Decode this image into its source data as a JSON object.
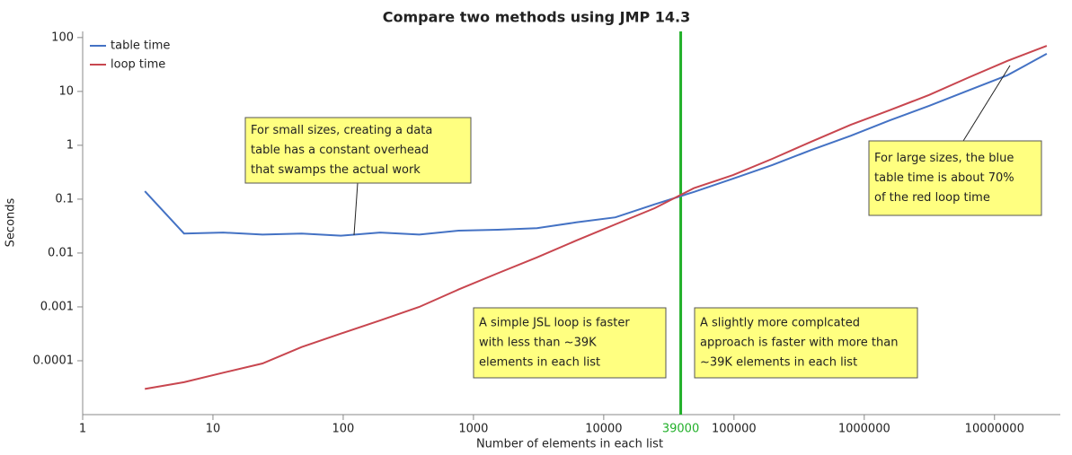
{
  "chart_data": {
    "type": "line",
    "title": "Compare two methods using JMP 14.3",
    "x_label": "Number of elements in each list",
    "y_label": "Seconds",
    "x_scale": "log",
    "y_scale": "log",
    "x": [
      3,
      6,
      12,
      24,
      48,
      96,
      192,
      384,
      768,
      1536,
      3072,
      6144,
      12288,
      24576,
      49152,
      98304,
      196608,
      393216,
      786432,
      1572864,
      3145728,
      6291456,
      12582912,
      25165824
    ],
    "series": [
      {
        "name": "table time",
        "color": "#4472c4",
        "values": [
          0.14,
          0.023,
          0.024,
          0.022,
          0.023,
          0.021,
          0.024,
          0.022,
          0.026,
          0.027,
          0.029,
          0.037,
          0.046,
          0.08,
          0.136,
          0.24,
          0.43,
          0.82,
          1.5,
          2.9,
          5.4,
          10.4,
          20,
          50
        ]
      },
      {
        "name": "loop time",
        "color": "#c8464f",
        "values": [
          3e-05,
          4e-05,
          6e-05,
          8.9e-05,
          0.00018,
          0.00032,
          0.00056,
          0.001,
          0.0021,
          0.0042,
          0.0083,
          0.017,
          0.034,
          0.068,
          0.16,
          0.28,
          0.56,
          1.17,
          2.4,
          4.5,
          8.6,
          18,
          37,
          70
        ]
      }
    ],
    "xlim": [
      1,
      32000000
    ],
    "ylim": [
      1e-05,
      130
    ],
    "xticks": [
      1,
      10,
      100,
      1000,
      10000,
      100000,
      1000000,
      10000000
    ],
    "yticks": [
      0.0001,
      0.001,
      0.01,
      0.1,
      1,
      10,
      100
    ],
    "reference_line": {
      "value": 39000,
      "color": "#22b02a"
    },
    "legend": "top-left",
    "annotations": [
      [
        "For small sizes, creating a data",
        "table has a constant overhead",
        "that swamps the actual work"
      ],
      [
        "For large sizes, the blue",
        "table time is about 70%",
        "of the red loop time"
      ],
      [
        "A simple JSL loop is faster",
        "with less than ~39K",
        "elements in each list"
      ],
      [
        "A slightly more complcated",
        "approach is faster with more than",
        "~39K elements in each list"
      ]
    ]
  }
}
